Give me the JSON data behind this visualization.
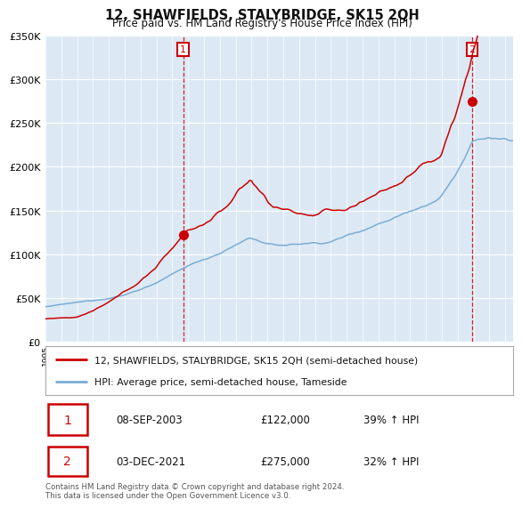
{
  "title": "12, SHAWFIELDS, STALYBRIDGE, SK15 2QH",
  "subtitle": "Price paid vs. HM Land Registry's House Price Index (HPI)",
  "legend_line1": "12, SHAWFIELDS, STALYBRIDGE, SK15 2QH (semi-detached house)",
  "legend_line2": "HPI: Average price, semi-detached house, Tameside",
  "annotation1_date": "08-SEP-2003",
  "annotation1_price": "£122,000",
  "annotation1_hpi": "39% ↑ HPI",
  "annotation2_date": "03-DEC-2021",
  "annotation2_price": "£275,000",
  "annotation2_hpi": "32% ↑ HPI",
  "footer": "Contains HM Land Registry data © Crown copyright and database right 2024.\nThis data is licensed under the Open Government Licence v3.0.",
  "sale1_year": 2003.69,
  "sale1_value": 122000,
  "sale2_year": 2021.92,
  "sale2_value": 275000,
  "ylim": [
    0,
    350000
  ],
  "yticks": [
    0,
    50000,
    100000,
    150000,
    200000,
    250000,
    300000,
    350000
  ],
  "hpi_color": "#7aadd4",
  "property_color": "#cc0000",
  "background_color": "#dce9f5",
  "vline_color": "#cc0000",
  "grid_color": "#ffffff"
}
